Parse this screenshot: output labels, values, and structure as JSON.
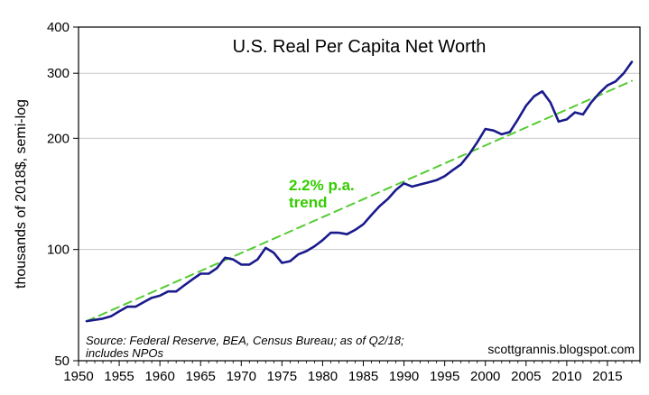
{
  "chart_data": {
    "type": "line",
    "title": "U.S. Real Per Capita Net Worth",
    "ylabel": "thousands of 2018$, semi-log",
    "xlabel": "",
    "yscale": "log",
    "xlim": [
      1950,
      2019
    ],
    "ylim": [
      50,
      400
    ],
    "x_ticks": [
      "1950",
      "1955",
      "1960",
      "1965",
      "1970",
      "1975",
      "1980",
      "1985",
      "1990",
      "1995",
      "2000",
      "2005",
      "2010",
      "2015"
    ],
    "y_ticks": [
      "50",
      "100",
      "200",
      "300",
      "400"
    ],
    "grid": "horizontal",
    "series": [
      {
        "color": "#1a1a8c",
        "x": [
          1951,
          1952,
          1953,
          1954,
          1955,
          1956,
          1957,
          1958,
          1959,
          1960,
          1961,
          1962,
          1963,
          1964,
          1965,
          1966,
          1967,
          1968,
          1969,
          1970,
          1971,
          1972,
          1973,
          1974,
          1975,
          1976,
          1977,
          1978,
          1979,
          1980,
          1981,
          1982,
          1983,
          1984,
          1985,
          1986,
          1987,
          1988,
          1989,
          1990,
          1991,
          1992,
          1993,
          1994,
          1995,
          1996,
          1997,
          1998,
          1999,
          2000,
          2001,
          2002,
          2003,
          2004,
          2005,
          2006,
          2007,
          2008,
          2009,
          2010,
          2011,
          2012,
          2013,
          2014,
          2015,
          2016,
          2017,
          2018
        ],
        "y": [
          64,
          64.5,
          65,
          66,
          68,
          70,
          70,
          72,
          74,
          75,
          77,
          77,
          80,
          83,
          86,
          86,
          89,
          95,
          94,
          91,
          91,
          94,
          101,
          98,
          92,
          93,
          97,
          99,
          102,
          106,
          111,
          111,
          110,
          113,
          117,
          124,
          131,
          137,
          145,
          151,
          148,
          150,
          152,
          154,
          158,
          164,
          170,
          181,
          195,
          212,
          210,
          205,
          208,
          225,
          245,
          260,
          268,
          250,
          222,
          225,
          235,
          232,
          250,
          265,
          278,
          285,
          300,
          322
        ]
      },
      {
        "name": "2.2% p.a. trend",
        "color": "#55cc33",
        "style": "dashed",
        "x": [
          1951,
          2018
        ],
        "y": [
          64,
          286
        ]
      }
    ],
    "annotations": {
      "trend_line1": "2.2% p.a.",
      "trend_line2": "trend",
      "source_line1": "Source: Federal Reserve, BEA, Census Bureau; as of Q2/18;",
      "source_line2": "includes NPOs",
      "credit": "scottgrannis.blogspot.com"
    }
  }
}
